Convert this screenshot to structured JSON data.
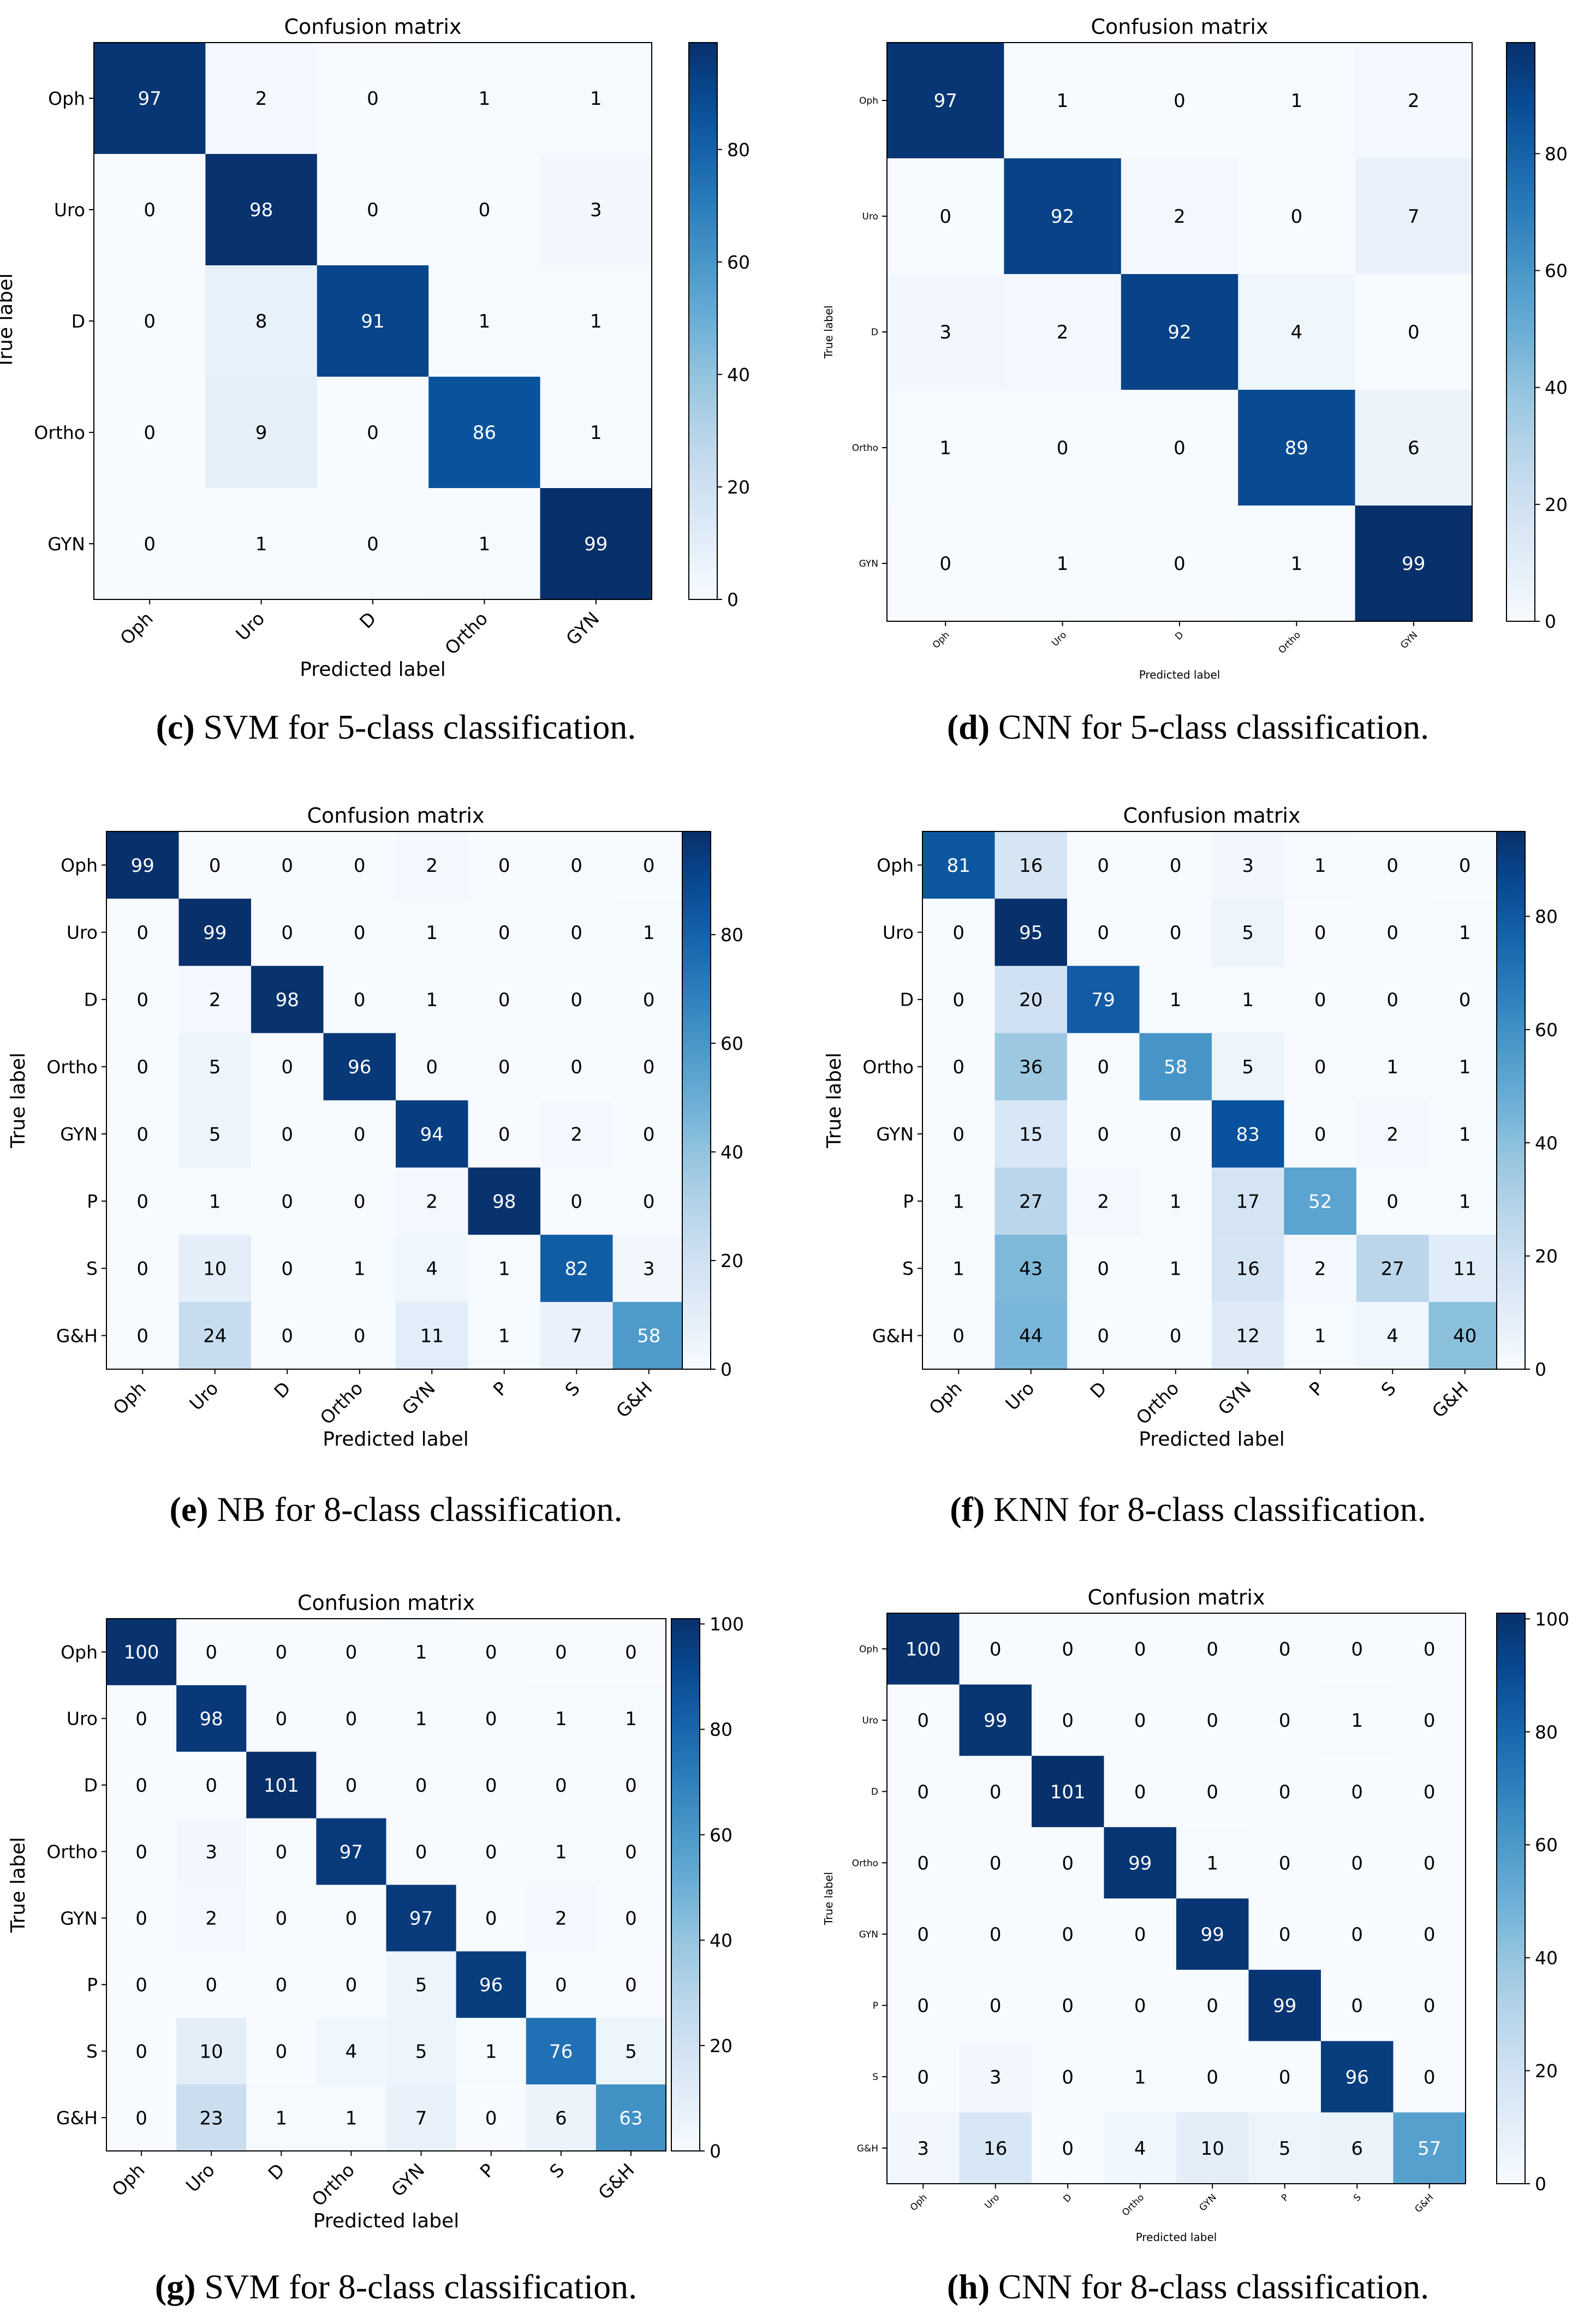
{
  "chart_data": [
    {
      "type": "heatmap",
      "title": "Confusion matrix",
      "xlabel": "Predicted label",
      "ylabel": "True label",
      "labels": [
        "Oph",
        "Uro",
        "D",
        "Ortho",
        "GYN"
      ],
      "matrix": [
        [
          97,
          2,
          0,
          1,
          1
        ],
        [
          0,
          98,
          0,
          0,
          3
        ],
        [
          0,
          8,
          91,
          1,
          1
        ],
        [
          0,
          9,
          0,
          86,
          1
        ],
        [
          0,
          1,
          0,
          1,
          99
        ]
      ],
      "colorbar_ticks": [
        0,
        20,
        40,
        60,
        80
      ],
      "colorbar_range": [
        0,
        99
      ],
      "caption_letter": "(c)",
      "caption_text": "SVM for 5-class classification."
    },
    {
      "type": "heatmap",
      "title": "Confusion matrix",
      "xlabel": "Predicted label",
      "ylabel": "True label",
      "labels": [
        "Oph",
        "Uro",
        "D",
        "Ortho",
        "GYN"
      ],
      "matrix": [
        [
          97,
          1,
          0,
          1,
          2
        ],
        [
          0,
          92,
          2,
          0,
          7
        ],
        [
          3,
          2,
          92,
          4,
          0
        ],
        [
          1,
          0,
          0,
          89,
          6
        ],
        [
          0,
          1,
          0,
          1,
          99
        ]
      ],
      "colorbar_ticks": [
        0,
        20,
        40,
        60,
        80
      ],
      "colorbar_range": [
        0,
        99
      ],
      "caption_letter": "(d)",
      "caption_text": "CNN for 5-class classification."
    },
    {
      "type": "heatmap",
      "title": "Confusion matrix",
      "xlabel": "Predicted label",
      "ylabel": "True label",
      "labels": [
        "Oph",
        "Uro",
        "D",
        "Ortho",
        "GYN",
        "P",
        "S",
        "G&H"
      ],
      "matrix": [
        [
          99,
          0,
          0,
          0,
          2,
          0,
          0,
          0
        ],
        [
          0,
          99,
          0,
          0,
          1,
          0,
          0,
          1
        ],
        [
          0,
          2,
          98,
          0,
          1,
          0,
          0,
          0
        ],
        [
          0,
          5,
          0,
          96,
          0,
          0,
          0,
          0
        ],
        [
          0,
          5,
          0,
          0,
          94,
          0,
          2,
          0
        ],
        [
          0,
          1,
          0,
          0,
          2,
          98,
          0,
          0
        ],
        [
          0,
          10,
          0,
          1,
          4,
          1,
          82,
          3
        ],
        [
          0,
          24,
          0,
          0,
          11,
          1,
          7,
          58
        ]
      ],
      "colorbar_ticks": [
        0,
        20,
        40,
        60,
        80
      ],
      "colorbar_range": [
        0,
        99
      ],
      "caption_letter": "(e)",
      "caption_text": "NB for 8-class classification."
    },
    {
      "type": "heatmap",
      "title": "Confusion matrix",
      "xlabel": "Predicted label",
      "ylabel": "True label",
      "labels": [
        "Oph",
        "Uro",
        "D",
        "Ortho",
        "GYN",
        "P",
        "S",
        "G&H"
      ],
      "matrix": [
        [
          81,
          16,
          0,
          0,
          3,
          1,
          0,
          0
        ],
        [
          0,
          95,
          0,
          0,
          5,
          0,
          0,
          1
        ],
        [
          0,
          20,
          79,
          1,
          1,
          0,
          0,
          0
        ],
        [
          0,
          36,
          0,
          58,
          5,
          0,
          1,
          1
        ],
        [
          0,
          15,
          0,
          0,
          83,
          0,
          2,
          1
        ],
        [
          1,
          27,
          2,
          1,
          17,
          52,
          0,
          1
        ],
        [
          1,
          43,
          0,
          1,
          16,
          2,
          27,
          11
        ],
        [
          0,
          44,
          0,
          0,
          12,
          1,
          4,
          40
        ]
      ],
      "colorbar_ticks": [
        0,
        20,
        40,
        60,
        80
      ],
      "colorbar_range": [
        0,
        95
      ],
      "caption_letter": "(f)",
      "caption_text": "KNN for 8-class classification."
    },
    {
      "type": "heatmap",
      "title": "Confusion matrix",
      "xlabel": "Predicted label",
      "ylabel": "True label",
      "labels": [
        "Oph",
        "Uro",
        "D",
        "Ortho",
        "GYN",
        "P",
        "S",
        "G&H"
      ],
      "matrix": [
        [
          100,
          0,
          0,
          0,
          1,
          0,
          0,
          0
        ],
        [
          0,
          98,
          0,
          0,
          1,
          0,
          1,
          1
        ],
        [
          0,
          0,
          101,
          0,
          0,
          0,
          0,
          0
        ],
        [
          0,
          3,
          0,
          97,
          0,
          0,
          1,
          0
        ],
        [
          0,
          2,
          0,
          0,
          97,
          0,
          2,
          0
        ],
        [
          0,
          0,
          0,
          0,
          5,
          96,
          0,
          0
        ],
        [
          0,
          10,
          0,
          4,
          5,
          1,
          76,
          5
        ],
        [
          0,
          23,
          1,
          1,
          7,
          0,
          6,
          63
        ]
      ],
      "colorbar_ticks": [
        0,
        20,
        40,
        60,
        80,
        100
      ],
      "colorbar_range": [
        0,
        101
      ],
      "caption_letter": "(g)",
      "caption_text": "SVM for 8-class classification."
    },
    {
      "type": "heatmap",
      "title": "Confusion matrix",
      "xlabel": "Predicted label",
      "ylabel": "True label",
      "labels": [
        "Oph",
        "Uro",
        "D",
        "Ortho",
        "GYN",
        "P",
        "S",
        "G&H"
      ],
      "matrix": [
        [
          100,
          0,
          0,
          0,
          0,
          0,
          0,
          0
        ],
        [
          0,
          99,
          0,
          0,
          0,
          0,
          1,
          0
        ],
        [
          0,
          0,
          101,
          0,
          0,
          0,
          0,
          0
        ],
        [
          0,
          0,
          0,
          99,
          1,
          0,
          0,
          0
        ],
        [
          0,
          0,
          0,
          0,
          99,
          0,
          0,
          0
        ],
        [
          0,
          0,
          0,
          0,
          0,
          99,
          0,
          0
        ],
        [
          0,
          3,
          0,
          1,
          0,
          0,
          96,
          0
        ],
        [
          3,
          16,
          0,
          4,
          10,
          5,
          6,
          57
        ]
      ],
      "colorbar_ticks": [
        0,
        20,
        40,
        60,
        80,
        100
      ],
      "colorbar_range": [
        0,
        101
      ],
      "caption_letter": "(h)",
      "caption_text": "CNN for 8-class classification."
    }
  ]
}
